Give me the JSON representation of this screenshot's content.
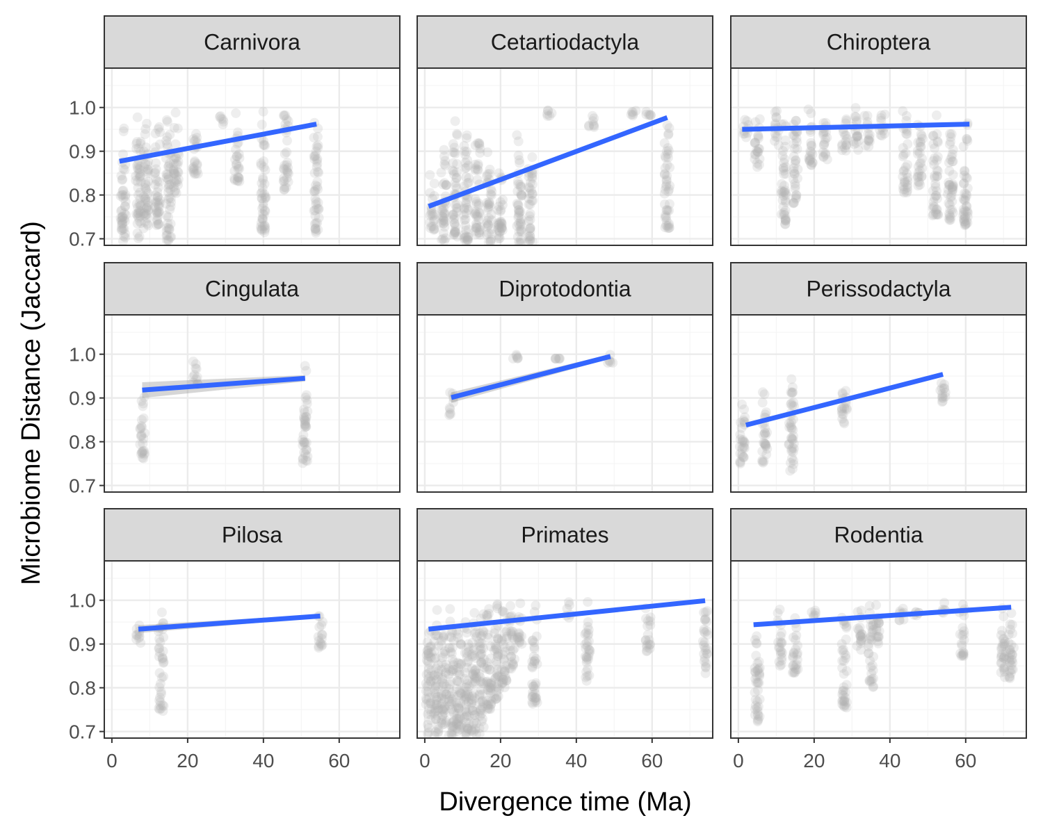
{
  "chart_data": {
    "type": "scatter",
    "layout": "facet-grid 3x3",
    "xlabel": "Divergence time (Ma)",
    "ylabel": "Microbiome Distance (Jaccard)",
    "xlim": [
      -2,
      76
    ],
    "ylim": [
      0.685,
      1.09
    ],
    "x_ticks": [
      0,
      20,
      40,
      60
    ],
    "x_tick_labels": [
      "0",
      "20",
      "40",
      "60"
    ],
    "y_ticks": [
      0.7,
      0.8,
      0.9,
      1.0
    ],
    "y_tick_labels": [
      "0.7",
      "0.8",
      "0.9",
      "1.0"
    ],
    "grid": true,
    "theme": "bw",
    "colors": {
      "points": "#b3b3b3",
      "fit_line": "#3366ff",
      "ribbon": "#999999",
      "strip_fill": "#d9d9d9",
      "panel_border": "#333333",
      "grid_major": "#ebebeb",
      "grid_minor": "#f5f5f5"
    },
    "panels": [
      {
        "name": "Carnivora",
        "fit": {
          "x": [
            2,
            54
          ],
          "y": [
            0.877,
            0.962
          ]
        },
        "columns": [
          {
            "x": 3,
            "min": 0.69,
            "max": 0.98
          },
          {
            "x": 7,
            "min": 0.7,
            "max": 1.0
          },
          {
            "x": 9,
            "min": 0.72,
            "max": 1.0
          },
          {
            "x": 12,
            "min": 0.73,
            "max": 0.99
          },
          {
            "x": 15,
            "min": 0.69,
            "max": 1.0
          },
          {
            "x": 17,
            "min": 0.8,
            "max": 1.0
          },
          {
            "x": 22,
            "min": 0.84,
            "max": 0.98
          },
          {
            "x": 29,
            "min": 0.96,
            "max": 1.0
          },
          {
            "x": 33,
            "min": 0.83,
            "max": 1.0
          },
          {
            "x": 40,
            "min": 0.71,
            "max": 1.0
          },
          {
            "x": 46,
            "min": 0.8,
            "max": 1.0
          },
          {
            "x": 54,
            "min": 0.71,
            "max": 1.0
          }
        ]
      },
      {
        "name": "Cetartiodactyla",
        "fit": {
          "x": [
            1,
            64
          ],
          "y": [
            0.774,
            0.977
          ]
        },
        "columns": [
          {
            "x": 2,
            "min": 0.72,
            "max": 0.86
          },
          {
            "x": 5,
            "min": 0.69,
            "max": 0.92
          },
          {
            "x": 8,
            "min": 0.7,
            "max": 0.98
          },
          {
            "x": 11,
            "min": 0.69,
            "max": 0.97
          },
          {
            "x": 14,
            "min": 0.7,
            "max": 0.96
          },
          {
            "x": 17,
            "min": 0.69,
            "max": 0.92
          },
          {
            "x": 20,
            "min": 0.7,
            "max": 0.9
          },
          {
            "x": 25,
            "min": 0.69,
            "max": 0.95
          },
          {
            "x": 28,
            "min": 0.69,
            "max": 0.93
          },
          {
            "x": 33,
            "min": 0.98,
            "max": 1.0
          },
          {
            "x": 44,
            "min": 0.95,
            "max": 1.0
          },
          {
            "x": 55,
            "min": 0.98,
            "max": 1.0
          },
          {
            "x": 59,
            "min": 0.98,
            "max": 1.0
          },
          {
            "x": 64,
            "min": 0.72,
            "max": 1.0
          }
        ]
      },
      {
        "name": "Chiroptera",
        "fit": {
          "x": [
            1,
            61
          ],
          "y": [
            0.95,
            0.962
          ]
        },
        "columns": [
          {
            "x": 2,
            "min": 0.93,
            "max": 0.99
          },
          {
            "x": 5,
            "min": 0.86,
            "max": 1.0
          },
          {
            "x": 10,
            "min": 0.91,
            "max": 1.0
          },
          {
            "x": 12,
            "min": 0.73,
            "max": 0.99
          },
          {
            "x": 15,
            "min": 0.78,
            "max": 1.0
          },
          {
            "x": 19,
            "min": 0.86,
            "max": 1.0
          },
          {
            "x": 23,
            "min": 0.88,
            "max": 1.0
          },
          {
            "x": 28,
            "min": 0.9,
            "max": 1.0
          },
          {
            "x": 31,
            "min": 0.89,
            "max": 1.0
          },
          {
            "x": 34,
            "min": 0.91,
            "max": 1.0
          },
          {
            "x": 38,
            "min": 0.93,
            "max": 1.0
          },
          {
            "x": 44,
            "min": 0.8,
            "max": 1.0
          },
          {
            "x": 48,
            "min": 0.82,
            "max": 1.0
          },
          {
            "x": 52,
            "min": 0.75,
            "max": 1.0
          },
          {
            "x": 56,
            "min": 0.74,
            "max": 1.0
          },
          {
            "x": 60,
            "min": 0.73,
            "max": 1.0
          }
        ]
      },
      {
        "name": "Cingulata",
        "fit": {
          "x": [
            8,
            51
          ],
          "y": [
            0.918,
            0.945
          ]
        },
        "ribbon": 0.012,
        "columns": [
          {
            "x": 8,
            "min": 0.76,
            "max": 0.93
          },
          {
            "x": 22,
            "min": 0.93,
            "max": 1.0
          },
          {
            "x": 51,
            "min": 0.75,
            "max": 1.0
          }
        ]
      },
      {
        "name": "Diprotodontia",
        "fit": {
          "x": [
            7,
            49
          ],
          "y": [
            0.901,
            0.995
          ]
        },
        "ribbon": 0.008,
        "columns": [
          {
            "x": 7,
            "min": 0.86,
            "max": 0.92
          },
          {
            "x": 24,
            "min": 0.99,
            "max": 1.0
          },
          {
            "x": 35,
            "min": 0.99,
            "max": 0.99
          },
          {
            "x": 49,
            "min": 0.98,
            "max": 1.0
          }
        ]
      },
      {
        "name": "Perissodactyla",
        "fit": {
          "x": [
            2,
            54
          ],
          "y": [
            0.838,
            0.954
          ]
        },
        "columns": [
          {
            "x": 1,
            "min": 0.75,
            "max": 0.93
          },
          {
            "x": 7,
            "min": 0.75,
            "max": 0.93
          },
          {
            "x": 14,
            "min": 0.73,
            "max": 0.98
          },
          {
            "x": 28,
            "min": 0.84,
            "max": 0.96
          },
          {
            "x": 54,
            "min": 0.89,
            "max": 0.98
          }
        ]
      },
      {
        "name": "Pilosa",
        "fit": {
          "x": [
            7,
            55
          ],
          "y": [
            0.934,
            0.964
          ]
        },
        "ribbon": 0.006,
        "columns": [
          {
            "x": 7,
            "min": 0.9,
            "max": 0.96
          },
          {
            "x": 13,
            "min": 0.74,
            "max": 0.98
          },
          {
            "x": 55,
            "min": 0.89,
            "max": 0.99
          }
        ]
      },
      {
        "name": "Primates",
        "fit": {
          "x": [
            1,
            74
          ],
          "y": [
            0.934,
            0.999
          ]
        },
        "columns": [
          {
            "x": 1,
            "min": 0.69,
            "max": 0.99
          },
          {
            "x": 3,
            "min": 0.69,
            "max": 0.99
          },
          {
            "x": 5,
            "min": 0.71,
            "max": 0.99
          },
          {
            "x": 7,
            "min": 0.69,
            "max": 0.99
          },
          {
            "x": 9,
            "min": 0.7,
            "max": 0.99
          },
          {
            "x": 11,
            "min": 0.69,
            "max": 0.99
          },
          {
            "x": 13,
            "min": 0.69,
            "max": 1.0
          },
          {
            "x": 15,
            "min": 0.69,
            "max": 0.99
          },
          {
            "x": 17,
            "min": 0.75,
            "max": 1.0
          },
          {
            "x": 19,
            "min": 0.77,
            "max": 1.0
          },
          {
            "x": 21,
            "min": 0.8,
            "max": 1.0
          },
          {
            "x": 23,
            "min": 0.84,
            "max": 1.0
          },
          {
            "x": 25,
            "min": 0.9,
            "max": 1.0
          },
          {
            "x": 29,
            "min": 0.76,
            "max": 1.0
          },
          {
            "x": 38,
            "min": 0.96,
            "max": 1.0
          },
          {
            "x": 43,
            "min": 0.81,
            "max": 1.0
          },
          {
            "x": 59,
            "min": 0.88,
            "max": 1.0
          },
          {
            "x": 74,
            "min": 0.83,
            "max": 1.0
          }
        ]
      },
      {
        "name": "Rodentia",
        "fit": {
          "x": [
            4,
            72
          ],
          "y": [
            0.944,
            0.984
          ]
        },
        "columns": [
          {
            "x": 5,
            "min": 0.72,
            "max": 0.97
          },
          {
            "x": 11,
            "min": 0.85,
            "max": 0.99
          },
          {
            "x": 15,
            "min": 0.83,
            "max": 0.99
          },
          {
            "x": 20,
            "min": 0.96,
            "max": 0.99
          },
          {
            "x": 28,
            "min": 0.75,
            "max": 0.99
          },
          {
            "x": 32,
            "min": 0.88,
            "max": 1.0
          },
          {
            "x": 35,
            "min": 0.8,
            "max": 1.0
          },
          {
            "x": 37,
            "min": 0.9,
            "max": 1.0
          },
          {
            "x": 43,
            "min": 0.95,
            "max": 1.0
          },
          {
            "x": 47,
            "min": 0.96,
            "max": 1.0
          },
          {
            "x": 54,
            "min": 0.97,
            "max": 1.0
          },
          {
            "x": 59,
            "min": 0.87,
            "max": 1.0
          },
          {
            "x": 70,
            "min": 0.82,
            "max": 1.0
          },
          {
            "x": 72,
            "min": 0.82,
            "max": 1.0
          }
        ]
      }
    ]
  }
}
